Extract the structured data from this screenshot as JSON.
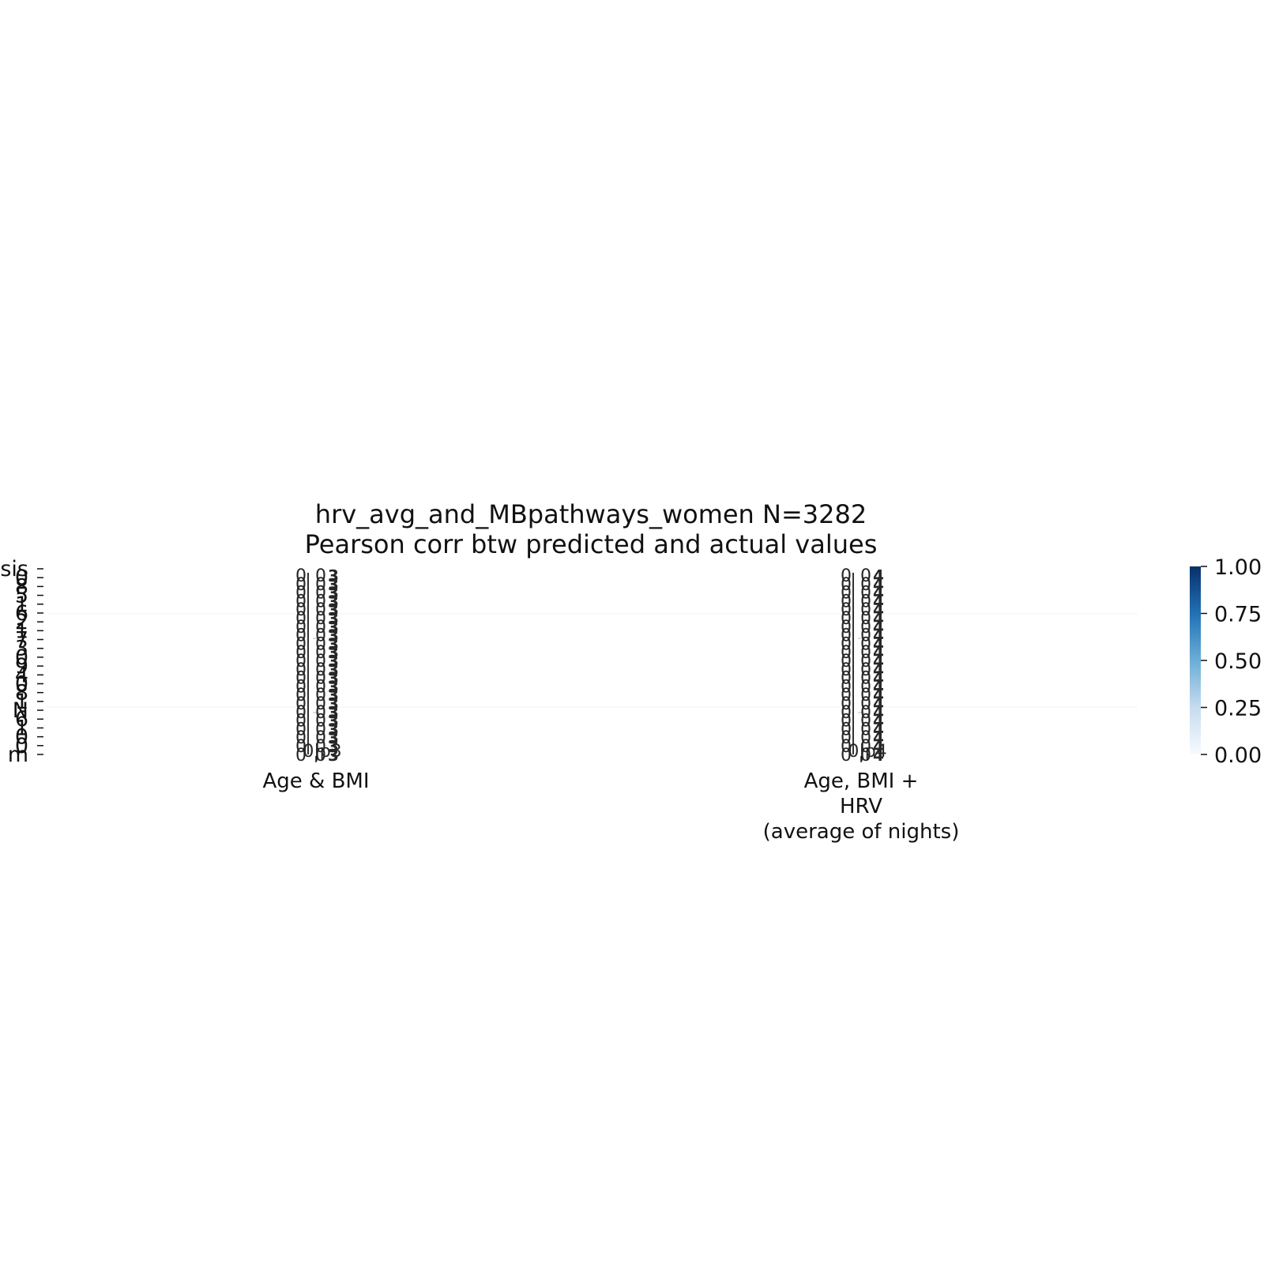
{
  "chart_data": {
    "type": "heatmap",
    "title": "hrv_avg_and_MBpathways_women N=3282\nPearson corr btw predicted and actual values",
    "columns": [
      {
        "label": "Age & BMI",
        "cell_text": "0|p3"
      },
      {
        "label": "Age, BMI +\nHRV\n(average of nights)",
        "cell_text": "0|p4"
      }
    ],
    "row_tick_labels": [
      "sis",
      "0",
      "8",
      "5",
      "1",
      "6",
      "2",
      "1",
      "7",
      "3",
      "0",
      "9",
      "4",
      "0",
      "8",
      "1",
      "N",
      "6",
      "1",
      "0",
      "0",
      "m"
    ],
    "colorbar": {
      "cmap": "Blues",
      "range": [
        0,
        1
      ],
      "ticks": [
        "0.00",
        "0.25",
        "0.50",
        "0.75",
        "1.00"
      ],
      "color_low": "#f7fbff",
      "color_high": "#08306b"
    },
    "grid": false
  }
}
